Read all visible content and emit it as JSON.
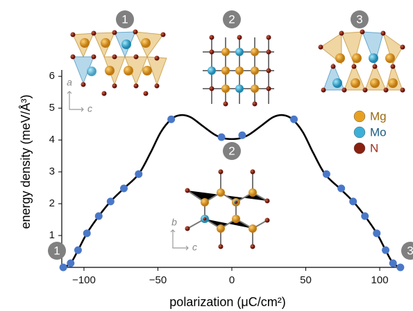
{
  "chart_data": {
    "type": "line",
    "x_label": "polarization (μC/cm²)",
    "y_label": "energy density (meV/Å³)",
    "xlim": [
      -115,
      115
    ],
    "ylim": [
      0,
      6.2
    ],
    "xticks": [
      {
        "value": -100,
        "label": "−100"
      },
      {
        "value": -50,
        "label": "−50"
      },
      0,
      50,
      100
    ],
    "yticks": [
      1,
      2,
      3,
      4,
      5,
      6
    ],
    "curve": {
      "color": "#000000",
      "x": [
        -114,
        -109,
        -104,
        -98,
        -90,
        -82,
        -73,
        -63,
        -55,
        -48,
        -41,
        -35,
        -28,
        -20,
        -12,
        -6,
        0,
        6,
        12,
        20,
        28,
        35,
        41,
        48,
        55,
        63,
        73,
        82,
        90,
        98,
        104,
        109,
        114
      ],
      "values": [
        0,
        0.13,
        0.54,
        1.07,
        1.61,
        2.07,
        2.48,
        2.93,
        3.6,
        4.25,
        4.65,
        4.78,
        4.72,
        4.45,
        4.18,
        4.06,
        4.03,
        4.06,
        4.18,
        4.45,
        4.72,
        4.78,
        4.65,
        4.25,
        3.6,
        2.93,
        2.48,
        2.07,
        1.61,
        1.07,
        0.54,
        0.13,
        0
      ]
    },
    "points": {
      "color": "#4a78c8",
      "x": [
        -114,
        -109,
        -104,
        -98,
        -90,
        -82,
        -73,
        -63,
        -41,
        -7,
        7,
        42,
        64,
        74,
        82,
        90,
        98,
        104,
        109,
        114
      ],
      "values": [
        0,
        0.13,
        0.54,
        1.07,
        1.61,
        2.07,
        2.48,
        2.93,
        4.65,
        4.09,
        4.15,
        4.65,
        2.93,
        2.48,
        2.07,
        1.61,
        1.07,
        0.54,
        0.13,
        0
      ]
    },
    "state_markers": [
      "1",
      "2",
      "3",
      "2",
      "1",
      "3"
    ],
    "inset_axis_labels": [
      "a",
      "c",
      "b",
      "c"
    ],
    "legend": [
      {
        "name": "Mg",
        "color": "#e8a020",
        "text_color": "#9a6a10"
      },
      {
        "name": "Mo",
        "color": "#3cb0d8",
        "text_color": "#1a5a80"
      },
      {
        "name": "N",
        "color": "#8a2010",
        "text_color": "#a03020"
      }
    ]
  }
}
